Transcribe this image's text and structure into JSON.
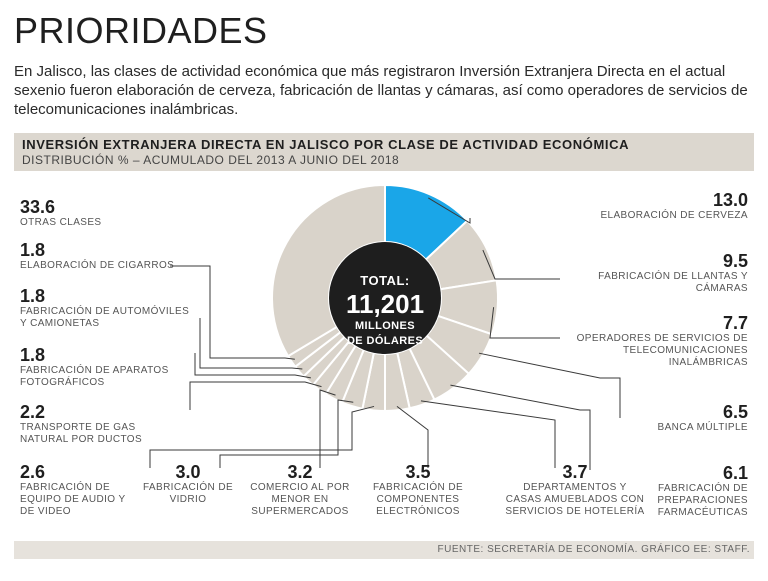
{
  "header": {
    "title": "PRIORIDADES",
    "intro": "En Jalisco, las clases de actividad económica que más registraron Inversión Extranjera Directa en el actual sexenio fueron elaboración de cerveza, fabricación de llantas y cámaras, así como operadores de servicios de telecomunicaciones inalámbricas."
  },
  "chart_data": {
    "type": "pie",
    "title": "INVERSIÓN EXTRANJERA DIRECTA EN JALISCO POR CLASE DE ACTIVIDAD ECONÓMICA",
    "subtitle": "DISTRIBUCIÓN % – ACUMULADO DEL 2013 A JUNIO DEL 2018",
    "center": {
      "total_label": "TOTAL:",
      "total_value": "11,201",
      "unit_line1": "MILLONES",
      "unit_line2": "DE DÓLARES"
    },
    "slices": [
      {
        "label": "ELABORACIÓN DE CERVEZA",
        "value": 13.0,
        "display": "13.0",
        "highlight": true
      },
      {
        "label": "FABRICACIÓN DE LLANTAS Y CÁMARAS",
        "value": 9.5,
        "display": "9.5"
      },
      {
        "label": "OPERADORES DE SERVICIOS DE TELECOMUNICACIONES INALÁMBRICAS",
        "value": 7.7,
        "display": "7.7"
      },
      {
        "label": "BANCA MÚLTIPLE",
        "value": 6.5,
        "display": "6.5"
      },
      {
        "label": "FABRICACIÓN DE PREPARACIONES FARMACÉUTICAS",
        "value": 6.1,
        "display": "6.1"
      },
      {
        "label": "DEPARTAMENTOS Y CASAS AMUEBLADOS CON SERVICIOS DE HOTELERÍA",
        "value": 3.7,
        "display": "3.7"
      },
      {
        "label": "FABRICACIÓN DE COMPONENTES ELECTRÓNICOS",
        "value": 3.5,
        "display": "3.5"
      },
      {
        "label": "COMERCIO AL POR MENOR EN SUPERMERCADOS",
        "value": 3.2,
        "display": "3.2"
      },
      {
        "label": "FABRICACIÓN DE VIDRIO",
        "value": 3.0,
        "display": "3.0"
      },
      {
        "label": "FABRICACIÓN DE EQUIPO DE AUDIO Y DE VIDEO",
        "value": 2.6,
        "display": "2.6"
      },
      {
        "label": "TRANSPORTE DE GAS NATURAL POR DUCTOS",
        "value": 2.2,
        "display": "2.2"
      },
      {
        "label": "FABRICACIÓN DE APARATOS FOTOGRÁFICOS",
        "value": 1.8,
        "display": "1.8"
      },
      {
        "label": "FABRICACIÓN DE AUTOMÓVILES Y CAMIONETAS",
        "value": 1.8,
        "display": "1.8"
      },
      {
        "label": "ELABORACIÓN DE CIGARROS",
        "value": 1.8,
        "display": "1.8"
      },
      {
        "label": "OTRAS CLASES",
        "value": 33.6,
        "display": "33.6"
      }
    ],
    "colors": {
      "highlight": "#1aa6e8",
      "slice": "#d9d3ca",
      "separator": "#ffffff",
      "center": "#1e1e1e",
      "leader": "#3a3a3a"
    }
  },
  "footer": {
    "source": "FUENTE: SECRETARÍA DE ECONOMÍA. GRÁFICO EE: STAFF."
  }
}
